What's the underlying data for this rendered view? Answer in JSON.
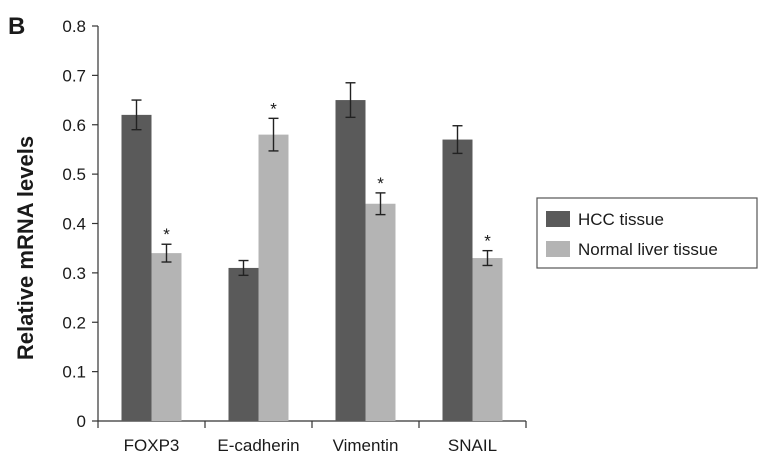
{
  "panel_label": "B",
  "chart_data": {
    "type": "bar",
    "title": "",
    "xlabel": "",
    "ylabel": "Relative mRNA levels",
    "ylim": [
      0,
      0.8
    ],
    "yticks": [
      "0",
      "0.1",
      "0.2",
      "0.3",
      "0.4",
      "0.5",
      "0.6",
      "0.7",
      "0.8"
    ],
    "categories": [
      "FOXP3",
      "E-cadherin",
      "Vimentin",
      "SNAIL"
    ],
    "series": [
      {
        "name": "HCC tissue",
        "color": "#5a5a5a",
        "values": [
          0.62,
          0.31,
          0.65,
          0.57
        ],
        "errors": [
          0.03,
          0.015,
          0.035,
          0.028
        ],
        "annotations": [
          "",
          "",
          "",
          ""
        ]
      },
      {
        "name": "Normal liver tissue",
        "color": "#b4b4b4",
        "values": [
          0.34,
          0.58,
          0.44,
          0.33
        ],
        "errors": [
          0.018,
          0.033,
          0.022,
          0.015
        ],
        "annotations": [
          "*",
          "*",
          "*",
          "*"
        ]
      }
    ],
    "grid": false,
    "legend": "right"
  }
}
